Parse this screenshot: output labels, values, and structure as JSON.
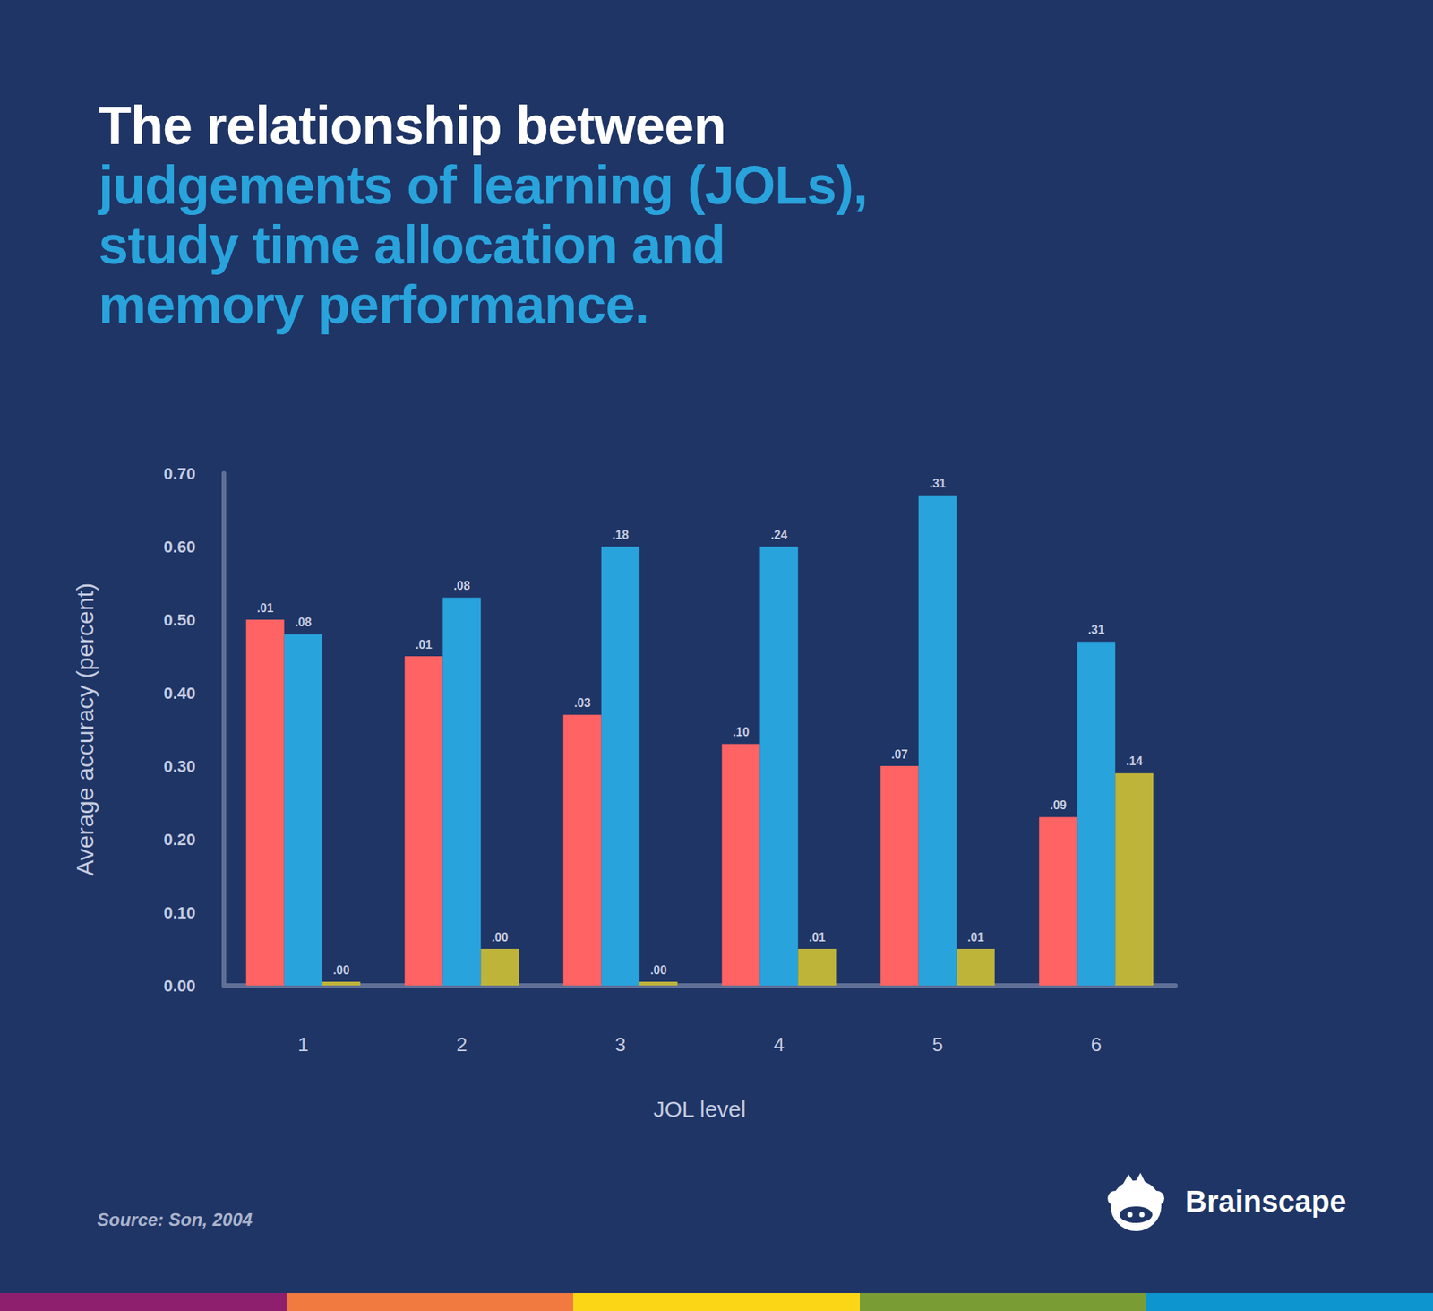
{
  "chart_data": {
    "type": "bar",
    "title": "The relationship between",
    "subtitle": "judgements of learning (JOLs),\nstudy time allocation and\nmemory performance.",
    "source": "Source: Son, 2004",
    "brand": "Brainscape",
    "x_label": "JOL level",
    "y_label": "Average accuracy (percent)",
    "categories": [
      "1",
      "2",
      "3",
      "4",
      "5",
      "6"
    ],
    "series": [
      {
        "color": "#ff6363",
        "values": [
          0.5,
          0.45,
          0.37,
          0.33,
          0.3,
          0.23
        ],
        "top_labels": [
          ".01",
          ".01",
          ".03",
          ".10",
          ".07",
          ".09"
        ]
      },
      {
        "color": "#29a3dc",
        "values": [
          0.48,
          0.53,
          0.6,
          0.6,
          0.67,
          0.47
        ],
        "top_labels": [
          ".08",
          ".08",
          ".18",
          ".24",
          ".31",
          ".31"
        ]
      },
      {
        "color": "#bfb43a",
        "values": [
          0.005,
          0.05,
          0.005,
          0.05,
          0.05,
          0.29
        ],
        "top_labels": [
          ".00",
          ".00",
          ".00",
          ".01",
          ".01",
          ".14"
        ]
      }
    ],
    "ylim": [
      0,
      0.7
    ],
    "yticks": [
      {
        "value": 0,
        "label": "0.00"
      },
      {
        "value": 0.1,
        "label": "0.10"
      },
      {
        "value": 0.2,
        "label": "0.20"
      },
      {
        "value": 0.3,
        "label": "0.30"
      },
      {
        "value": 0.4,
        "label": "0.40"
      },
      {
        "value": 0.5,
        "label": "0.50"
      },
      {
        "value": 0.6,
        "label": "0.60"
      },
      {
        "value": 0.7,
        "label": "0.70"
      }
    ],
    "grid": false
  }
}
